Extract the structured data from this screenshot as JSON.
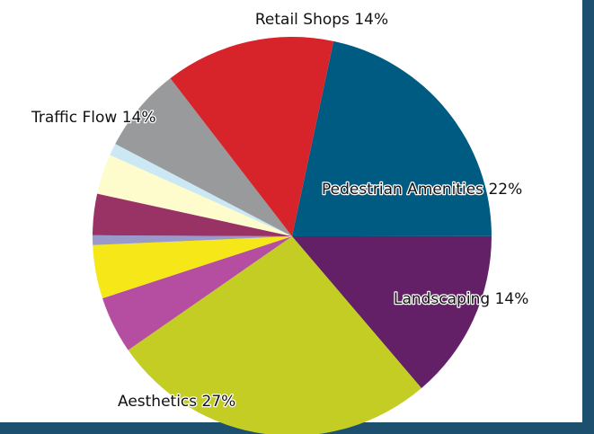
{
  "chart_data": {
    "type": "pie",
    "categories": [
      "Pedestrian Amenities",
      "Landscaping",
      "Aesthetics",
      null,
      null,
      null,
      null,
      null,
      null,
      null,
      "Retail Shops"
    ],
    "values": [
      22,
      14,
      27,
      4.7,
      4.4,
      0.8,
      3.4,
      3.3,
      1,
      7,
      14
    ],
    "value_labels": [
      "22%",
      "14%",
      "27%",
      null,
      null,
      null,
      null,
      null,
      null,
      null,
      "14%"
    ],
    "colors": [
      "#005b82",
      "#632066",
      "#c3cd23",
      "#b54ea1",
      "#f6e818",
      "#9999cc",
      "#993366",
      "#fefccc",
      "#cce8f4",
      "#999a9c",
      "#d7232a"
    ],
    "annotations": [
      "Traffic Flow 14%"
    ]
  }
}
